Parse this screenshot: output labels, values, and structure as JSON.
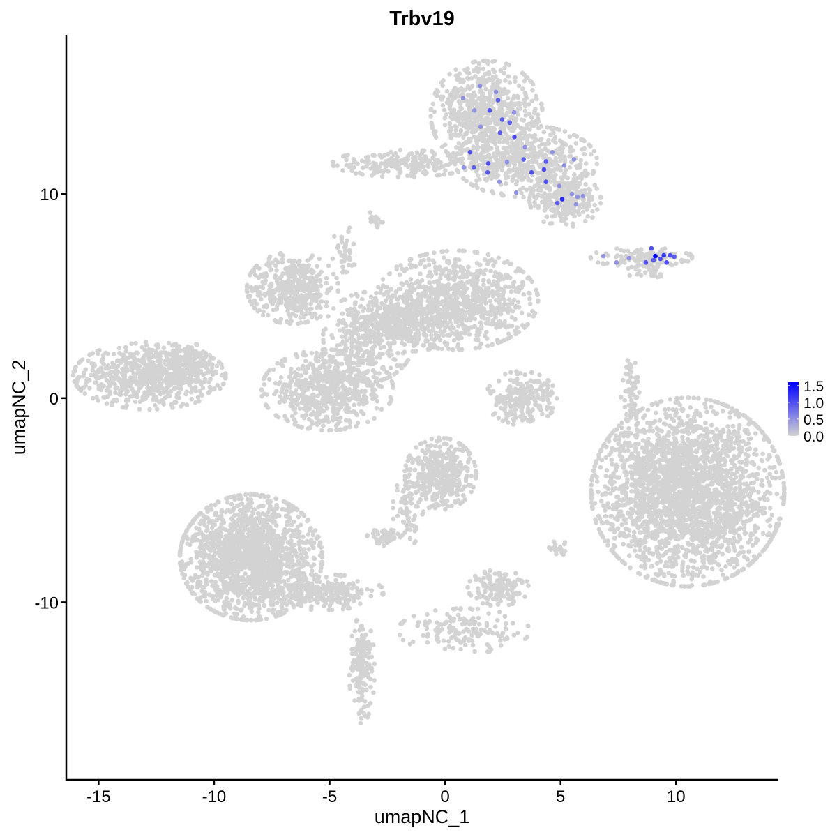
{
  "chart_data": {
    "type": "scatter",
    "title": "Trbv19",
    "xlabel": "umapNC_1",
    "ylabel": "umapNC_2",
    "xlim": [
      -16.4,
      14.4
    ],
    "ylim": [
      -18.7,
      17.8
    ],
    "xticks": [
      -15,
      -10,
      -5,
      0,
      5,
      10
    ],
    "yticks": [
      -10,
      0,
      10
    ],
    "grid": false,
    "legend": {
      "placement": "right",
      "type": "colorbar",
      "range": [
        0,
        1.6
      ],
      "ticks": [
        "1.5",
        "1.0",
        "0.5",
        "0.0"
      ],
      "tick_values": [
        1.5,
        1.0,
        0.5,
        0.0
      ],
      "low_color": "#D3D3D3",
      "high_color": "#0000FF"
    },
    "background_value": 0,
    "clusters": [
      {
        "cx": -12.8,
        "cy": 1.1,
        "sx": 1.5,
        "sy": 0.75,
        "n": 700
      },
      {
        "cx": -11.2,
        "cy": 1.6,
        "sx": 0.6,
        "sy": 0.5,
        "n": 120
      },
      {
        "cx": -6.6,
        "cy": 5.4,
        "sx": 0.9,
        "sy": 0.8,
        "n": 450
      },
      {
        "cx": 0.5,
        "cy": 4.8,
        "sx": 1.6,
        "sy": 1.1,
        "n": 900
      },
      {
        "cx": -1.8,
        "cy": 3.6,
        "sx": 1.2,
        "sy": 0.6,
        "n": 300
      },
      {
        "cx": -5.1,
        "cy": 0.4,
        "sx": 1.3,
        "sy": 0.9,
        "n": 650
      },
      {
        "cx": -3.3,
        "cy": 3.0,
        "sx": 0.9,
        "sy": 1.0,
        "n": 300
      },
      {
        "cx": -4.4,
        "cy": 7.2,
        "sx": 0.25,
        "sy": 0.6,
        "n": 40
      },
      {
        "cx": -3.0,
        "cy": 8.8,
        "sx": 0.15,
        "sy": 0.2,
        "n": 20
      },
      {
        "cx": 1.8,
        "cy": 13.9,
        "sx": 1.1,
        "sy": 1.2,
        "n": 700
      },
      {
        "cx": -1.8,
        "cy": 11.5,
        "sx": 1.4,
        "sy": 0.3,
        "n": 220
      },
      {
        "cx": 3.5,
        "cy": 11.6,
        "sx": 1.4,
        "sy": 0.8,
        "n": 500
      },
      {
        "cx": 5.2,
        "cy": 9.7,
        "sx": 0.7,
        "sy": 0.6,
        "n": 250
      },
      {
        "cx": 8.5,
        "cy": 6.9,
        "sx": 1.0,
        "sy": 0.22,
        "n": 120
      },
      {
        "cx": 8.7,
        "cy": 6.2,
        "sx": 0.4,
        "sy": 0.15,
        "n": 25
      },
      {
        "cx": 10.5,
        "cy": -4.6,
        "sx": 1.9,
        "sy": 2.1,
        "n": 2600
      },
      {
        "cx": 3.3,
        "cy": 0.0,
        "sx": 0.7,
        "sy": 0.6,
        "n": 220
      },
      {
        "cx": 8.05,
        "cy": 0.2,
        "sx": 0.2,
        "sy": 0.8,
        "n": 60
      },
      {
        "cx": -8.4,
        "cy": -7.8,
        "sx": 1.4,
        "sy": 1.4,
        "n": 1700
      },
      {
        "cx": -5.3,
        "cy": -9.5,
        "sx": 1.2,
        "sy": 0.4,
        "n": 250
      },
      {
        "cx": -3.6,
        "cy": -13.3,
        "sx": 0.25,
        "sy": 1.2,
        "n": 160
      },
      {
        "cx": -0.2,
        "cy": -3.7,
        "sx": 0.7,
        "sy": 0.8,
        "n": 400
      },
      {
        "cx": -1.6,
        "cy": -5.5,
        "sx": 0.3,
        "sy": 0.8,
        "n": 70
      },
      {
        "cx": -2.5,
        "cy": -6.8,
        "sx": 0.4,
        "sy": 0.2,
        "n": 60
      },
      {
        "cx": 2.3,
        "cy": -9.3,
        "sx": 0.6,
        "sy": 0.4,
        "n": 140
      },
      {
        "cx": 0.8,
        "cy": -11.4,
        "sx": 1.3,
        "sy": 0.5,
        "n": 160
      },
      {
        "cx": 4.9,
        "cy": -7.4,
        "sx": 0.2,
        "sy": 0.2,
        "n": 20
      }
    ],
    "expressing_points": [
      {
        "x": 1.51,
        "y": 15.3,
        "value": 0.5
      },
      {
        "x": 2.2,
        "y": 15.0,
        "value": 0.5
      },
      {
        "x": 0.78,
        "y": 14.7,
        "value": 0.5
      },
      {
        "x": 2.29,
        "y": 14.6,
        "value": 0.9
      },
      {
        "x": 1.93,
        "y": 14.1,
        "value": 1.0
      },
      {
        "x": 1.27,
        "y": 14.1,
        "value": 0.5
      },
      {
        "x": 2.99,
        "y": 14.0,
        "value": 0.5
      },
      {
        "x": 2.47,
        "y": 13.65,
        "value": 0.9
      },
      {
        "x": 2.8,
        "y": 13.5,
        "value": 0.9
      },
      {
        "x": 1.54,
        "y": 13.3,
        "value": 0.5
      },
      {
        "x": 2.38,
        "y": 13.0,
        "value": 0.9
      },
      {
        "x": 3.0,
        "y": 12.8,
        "value": 1.0
      },
      {
        "x": 1.08,
        "y": 12.05,
        "value": 1.0
      },
      {
        "x": 1.87,
        "y": 11.5,
        "value": 1.0
      },
      {
        "x": 0.81,
        "y": 11.3,
        "value": 0.5
      },
      {
        "x": 1.24,
        "y": 11.3,
        "value": 0.9
      },
      {
        "x": 1.84,
        "y": 11.06,
        "value": 0.9
      },
      {
        "x": 3.4,
        "y": 11.7,
        "value": 0.9
      },
      {
        "x": 3.46,
        "y": 12.3,
        "value": 0.5
      },
      {
        "x": 3.74,
        "y": 11.06,
        "value": 1.0
      },
      {
        "x": 4.28,
        "y": 11.2,
        "value": 1.0
      },
      {
        "x": 4.37,
        "y": 11.6,
        "value": 0.9
      },
      {
        "x": 4.64,
        "y": 12.05,
        "value": 0.5
      },
      {
        "x": 5.58,
        "y": 11.7,
        "value": 0.5
      },
      {
        "x": 5.16,
        "y": 11.4,
        "value": 0.5
      },
      {
        "x": 4.37,
        "y": 10.6,
        "value": 1.0
      },
      {
        "x": 4.95,
        "y": 10.4,
        "value": 0.5
      },
      {
        "x": 5.07,
        "y": 9.75,
        "value": 1.3
      },
      {
        "x": 4.86,
        "y": 9.56,
        "value": 0.9
      },
      {
        "x": 5.49,
        "y": 10.0,
        "value": 0.5
      },
      {
        "x": 5.73,
        "y": 9.86,
        "value": 0.5
      },
      {
        "x": 5.97,
        "y": 9.9,
        "value": 0.5
      },
      {
        "x": 5.67,
        "y": 9.49,
        "value": 0.5
      },
      {
        "x": 3.08,
        "y": 10.07,
        "value": 0.5
      },
      {
        "x": 2.35,
        "y": 10.6,
        "value": 0.5
      },
      {
        "x": 2.68,
        "y": 11.57,
        "value": 0.5
      },
      {
        "x": 9.1,
        "y": 6.96,
        "value": 1.6
      },
      {
        "x": 8.93,
        "y": 7.34,
        "value": 1.0
      },
      {
        "x": 9.47,
        "y": 7.0,
        "value": 1.2
      },
      {
        "x": 9.74,
        "y": 7.0,
        "value": 1.0
      },
      {
        "x": 9.32,
        "y": 6.83,
        "value": 1.0
      },
      {
        "x": 9.92,
        "y": 6.93,
        "value": 0.9
      },
      {
        "x": 9.59,
        "y": 6.65,
        "value": 1.0
      },
      {
        "x": 8.69,
        "y": 6.65,
        "value": 1.0
      },
      {
        "x": 6.85,
        "y": 6.96,
        "value": 0.5
      },
      {
        "x": 7.42,
        "y": 6.65,
        "value": 0.5
      },
      {
        "x": 7.96,
        "y": 6.86,
        "value": 0.5
      },
      {
        "x": 9.02,
        "y": 6.76,
        "value": 0.9
      }
    ]
  }
}
